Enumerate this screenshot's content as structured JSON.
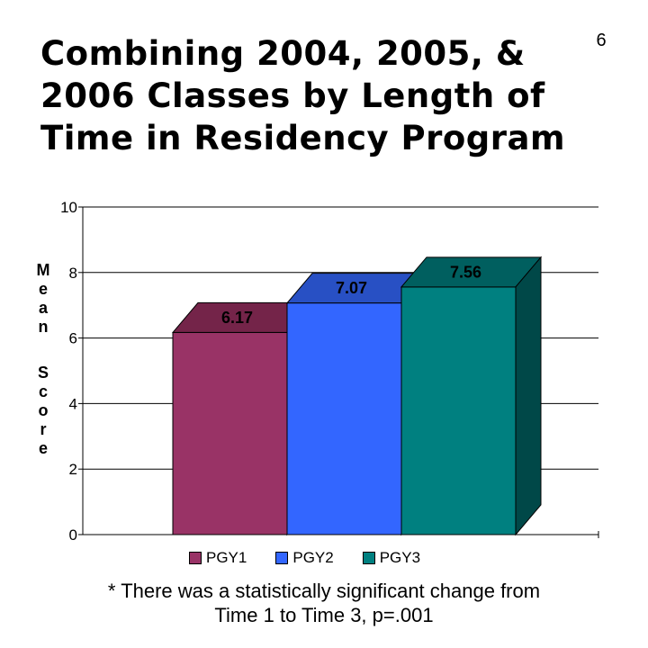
{
  "slide": {
    "title": "Combining 2004, 2005, & 2006 Classes by Length of Time in Residency Program",
    "number": "6",
    "footnote_line1": "* There was a statistically significant change from",
    "footnote_line2": "Time 1 to Time 3, p=.001"
  },
  "chart_data": {
    "type": "bar",
    "title": "",
    "ylabel": "Mean Score",
    "ylim": [
      0,
      10
    ],
    "yticks": [
      "0",
      "2",
      "4",
      "6",
      "8",
      "10"
    ],
    "categories": [
      "PGY1",
      "PGY2",
      "PGY3"
    ],
    "values": [
      6.17,
      7.07,
      7.56
    ],
    "value_labels": [
      "6.17",
      "7.07",
      "7.56"
    ],
    "grid": true,
    "legend_position": "bottom",
    "style": "3d-column",
    "colors": {
      "PGY1": {
        "front": "#993366",
        "top": "#742449",
        "side": "#5c1b3a"
      },
      "PGY2": {
        "front": "#3366ff",
        "top": "#2850c4",
        "side": "#1e3d99"
      },
      "PGY3": {
        "front": "#008080",
        "top": "#005f5f",
        "side": "#004848"
      }
    }
  }
}
